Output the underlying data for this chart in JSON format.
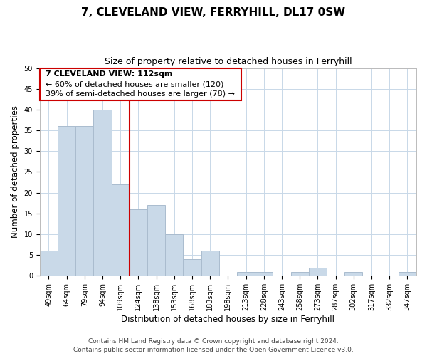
{
  "title": "7, CLEVELAND VIEW, FERRYHILL, DL17 0SW",
  "subtitle": "Size of property relative to detached houses in Ferryhill",
  "xlabel": "Distribution of detached houses by size in Ferryhill",
  "ylabel": "Number of detached properties",
  "bar_labels": [
    "49sqm",
    "64sqm",
    "79sqm",
    "94sqm",
    "109sqm",
    "124sqm",
    "138sqm",
    "153sqm",
    "168sqm",
    "183sqm",
    "198sqm",
    "213sqm",
    "228sqm",
    "243sqm",
    "258sqm",
    "273sqm",
    "287sqm",
    "302sqm",
    "317sqm",
    "332sqm",
    "347sqm"
  ],
  "bar_values": [
    6,
    36,
    36,
    40,
    22,
    16,
    17,
    10,
    4,
    6,
    0,
    1,
    1,
    0,
    1,
    2,
    0,
    1,
    0,
    0,
    1
  ],
  "bar_color": "#c9d9e8",
  "bar_edge_color": "#aabcce",
  "vline_x": 4.5,
  "vline_color": "#cc0000",
  "annotation_text_line1": "7 CLEVELAND VIEW: 112sqm",
  "annotation_text_line2": "← 60% of detached houses are smaller (120)",
  "annotation_text_line3": "39% of semi-detached houses are larger (78) →",
  "box_edge_color": "#cc0000",
  "ylim": [
    0,
    50
  ],
  "yticks": [
    0,
    5,
    10,
    15,
    20,
    25,
    30,
    35,
    40,
    45,
    50
  ],
  "footnote1": "Contains HM Land Registry data © Crown copyright and database right 2024.",
  "footnote2": "Contains public sector information licensed under the Open Government Licence v3.0.",
  "bg_color": "#ffffff",
  "grid_color": "#c8d8e8",
  "title_fontsize": 11,
  "subtitle_fontsize": 9,
  "axis_label_fontsize": 8.5,
  "tick_fontsize": 7,
  "annotation_fontsize": 8,
  "footnote_fontsize": 6.5
}
